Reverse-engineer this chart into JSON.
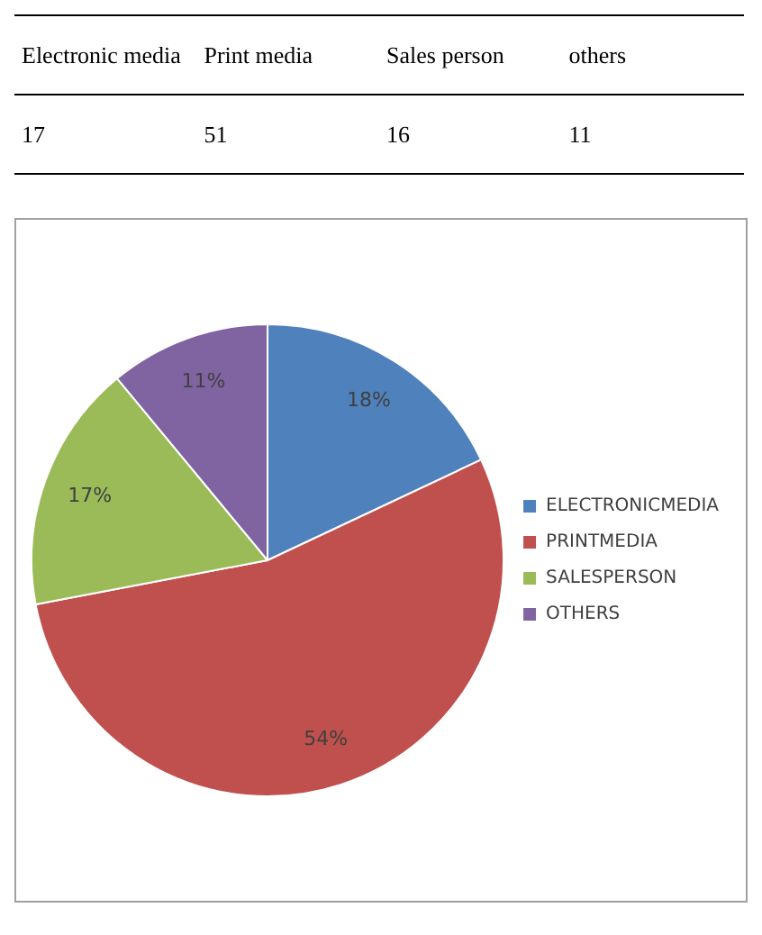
{
  "chart_data": [
    {
      "type": "other",
      "categories": [
        "Electronic media",
        "Print media",
        "Sales person",
        "others"
      ],
      "values": [
        17,
        51,
        16,
        11
      ],
      "data_labels": true
    },
    {
      "type": "pie",
      "categories": [
        "ELECTRONICMEDIA",
        "PRINTMEDIA",
        "SALESPERSON",
        "OTHERS"
      ],
      "values": [
        18,
        54,
        17,
        11
      ],
      "colors": [
        "#4f81bd",
        "#c0504d",
        "#9bbb59",
        "#8064a2"
      ],
      "value_labels": [
        "18%",
        "54%",
        "17%",
        "11%"
      ],
      "legend": "right"
    }
  ]
}
